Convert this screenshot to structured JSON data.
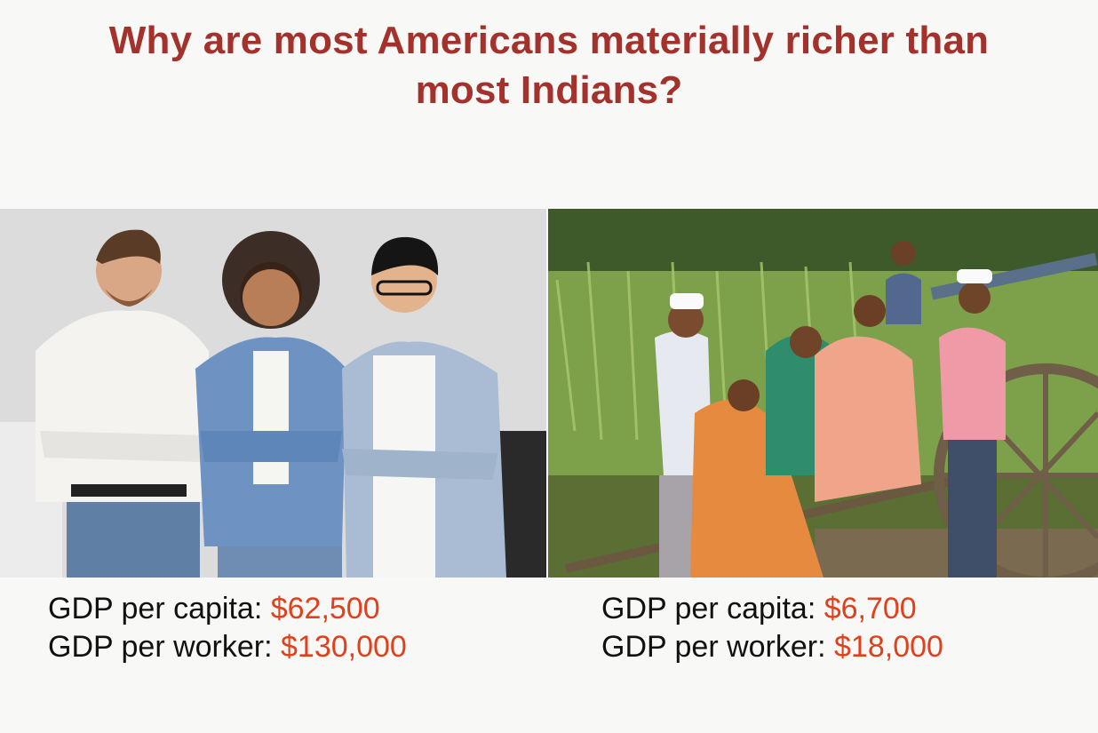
{
  "slide": {
    "title_line1": "Why are most Americans materially richer than",
    "title_line2": "most Indians?",
    "accent_color": "#a3312c",
    "value_color": "#e0401c"
  },
  "left": {
    "photo_icon": "photo-three-smiling-professionals",
    "gdp_capita_label": "GDP per capita: ",
    "gdp_capita_value": "$62,500",
    "gdp_worker_label": "GDP per worker: ",
    "gdp_worker_value": "$130,000"
  },
  "right": {
    "photo_icon": "photo-rural-family-with-bullock-cart",
    "gdp_capita_label": "GDP per capita: ",
    "gdp_capita_value": "$6,700",
    "gdp_worker_label": "GDP per worker: ",
    "gdp_worker_value": "$18,000"
  }
}
